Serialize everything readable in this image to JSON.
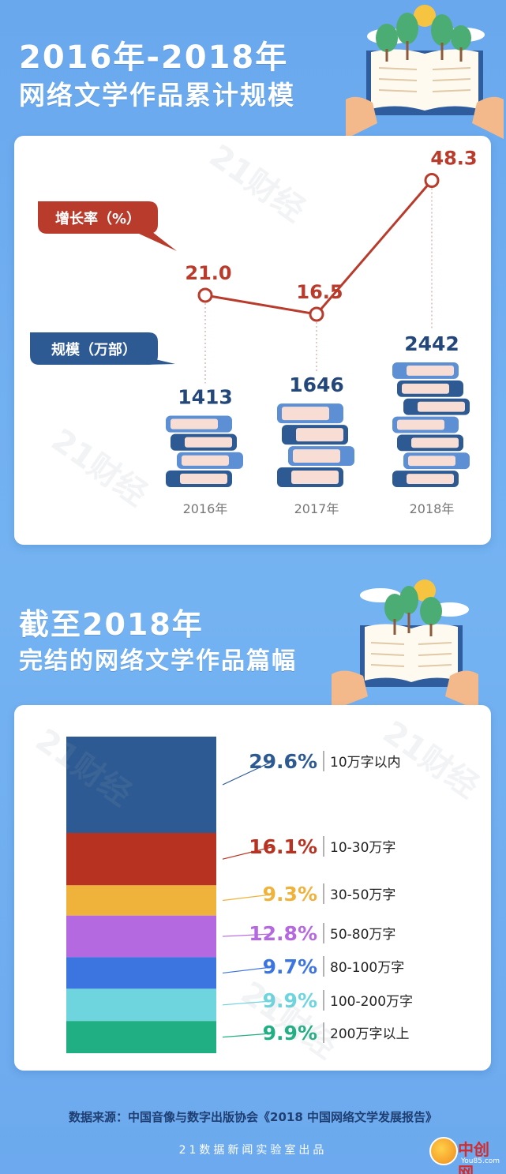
{
  "section1": {
    "title_line1": "2016年-2018年",
    "title_line2": "网络文学作品累计规模",
    "growth_label": "增长率（%）",
    "scale_label": "规模（万部）"
  },
  "section2": {
    "title_line1": "截至2018年",
    "title_line2": "完结的网络文学作品篇幅"
  },
  "chart_data": [
    {
      "type": "bar",
      "categories": [
        "2016年",
        "2017年",
        "2018年"
      ],
      "series": [
        {
          "name": "规模（万部）",
          "values": [
            1413,
            1646,
            2442
          ]
        },
        {
          "name": "增长率（%）",
          "values": [
            21.0,
            16.5,
            48.3
          ]
        }
      ],
      "value_labels": {
        "scale": [
          "1413",
          "1646",
          "2442"
        ],
        "growth": [
          "21.0",
          "16.5",
          "48.3"
        ]
      },
      "title": "",
      "colors": {
        "growth_line": "#b83b2c",
        "scale_label_bg": "#2d5a92"
      }
    },
    {
      "type": "bar",
      "categories": [
        "10万字以内",
        "10-30万字",
        "30-50万字",
        "50-80万字",
        "80-100万字",
        "100-200万字",
        "200万字以上"
      ],
      "values": [
        29.6,
        16.1,
        9.3,
        12.8,
        9.7,
        9.9,
        9.9
      ],
      "value_labels": [
        "29.6%",
        "16.1%",
        "9.3%",
        "12.8%",
        "9.7%",
        "9.9%",
        "9.9%"
      ],
      "colors": [
        "#2d5a92",
        "#b83221",
        "#efb33c",
        "#b569e0",
        "#3d75e0",
        "#6ed5df",
        "#1faf82"
      ],
      "title": ""
    }
  ],
  "footer": {
    "source": "数据来源：中国音像与数字出版协会《2018 中国网络文学发展报告》",
    "credit": "21数据新闻实验室出品",
    "logo_text": "中创网",
    "logo_sub": "You85.com"
  },
  "watermark_text": "21财经"
}
